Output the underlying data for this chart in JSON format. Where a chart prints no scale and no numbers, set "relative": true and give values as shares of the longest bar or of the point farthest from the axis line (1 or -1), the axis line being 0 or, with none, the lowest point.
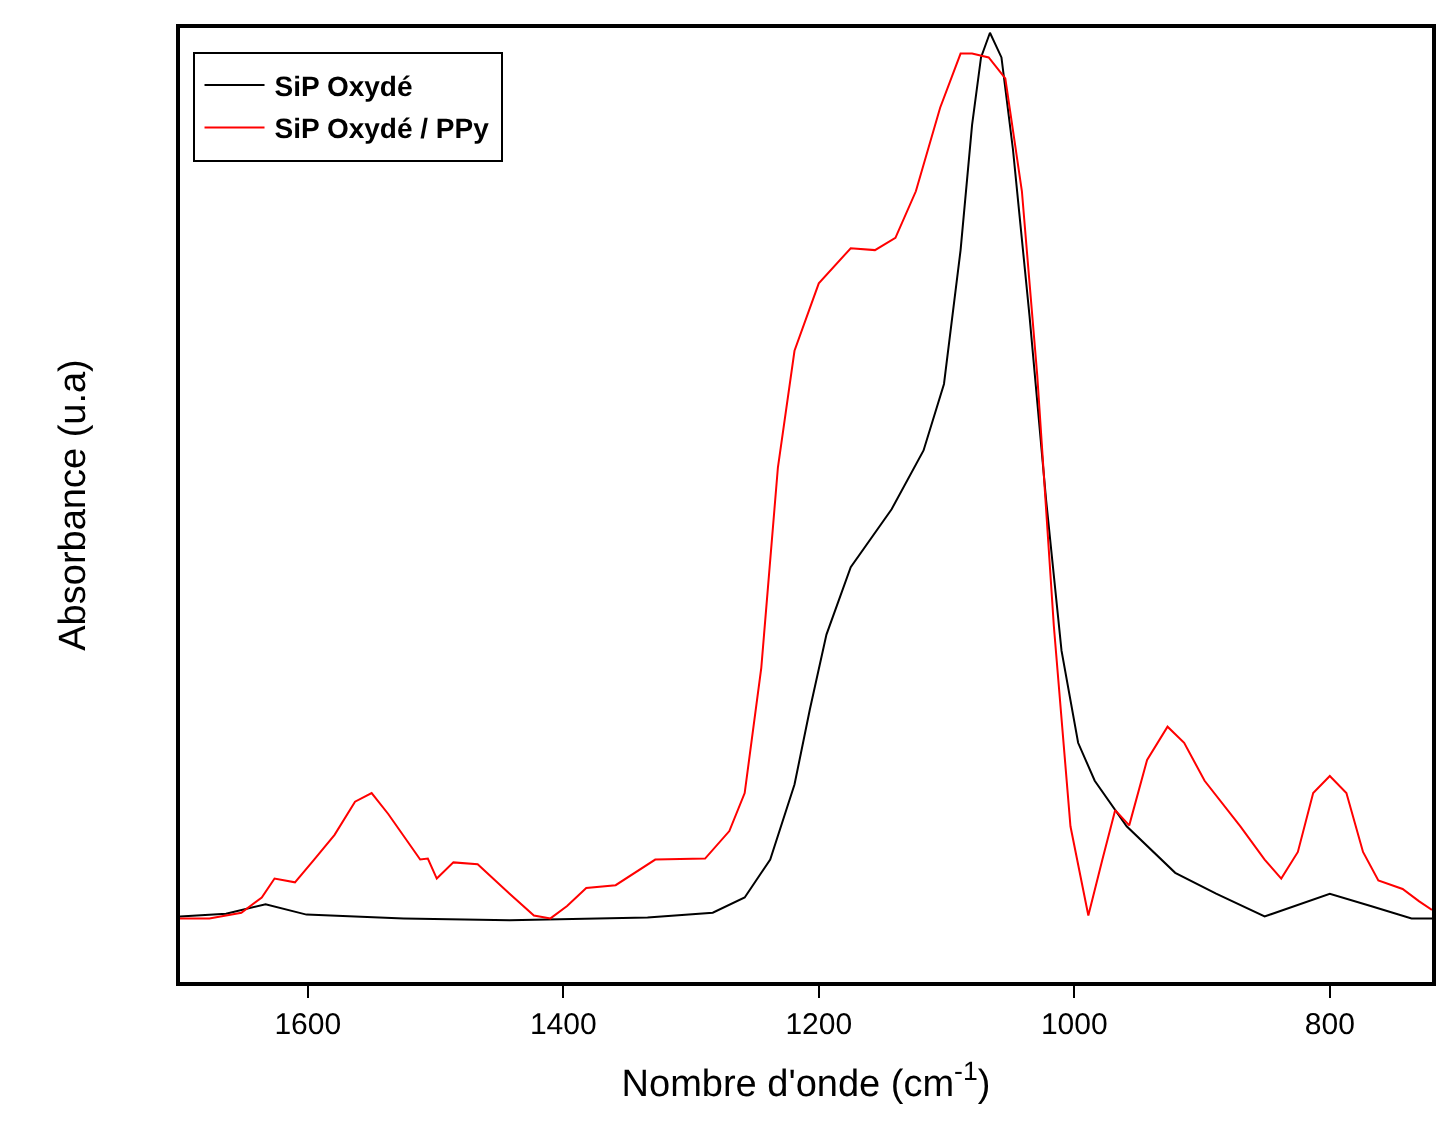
{
  "chart_data": {
    "type": "line",
    "relative": true,
    "xlabel": "Nombre d'onde (cm$^{-1}$)",
    "ylabel": "Absorbance (u.a)",
    "xlim": [
      1700,
      720
    ],
    "xticks": [
      1600,
      1400,
      1200,
      1000,
      800
    ],
    "legend": "top left",
    "marker": "none",
    "line_style": "solid",
    "series": [
      {
        "name": "SiP Oxydé",
        "color": "#000000",
        "x": [
          1700,
          1664,
          1633,
          1601,
          1525,
          1442,
          1334,
          1283,
          1258,
          1238,
          1219,
          1207,
          1194,
          1175,
          1143,
          1118,
          1102,
          1089,
          1080,
          1073,
          1066,
          1057,
          1048,
          1035,
          1022,
          1010,
          997,
          984,
          959,
          921,
          889,
          851,
          800,
          768,
          736,
          720
        ],
        "values": [
          0.069,
          0.072,
          0.082,
          0.071,
          0.067,
          0.065,
          0.068,
          0.073,
          0.089,
          0.129,
          0.208,
          0.287,
          0.366,
          0.437,
          0.498,
          0.56,
          0.63,
          0.771,
          0.903,
          0.974,
          1.0,
          0.974,
          0.877,
          0.701,
          0.507,
          0.349,
          0.252,
          0.212,
          0.164,
          0.115,
          0.093,
          0.069,
          0.093,
          0.08,
          0.067,
          0.067
        ]
      },
      {
        "name": "SiP Oxydé / PPy",
        "color": "#ff0000",
        "x": [
          1700,
          1677,
          1652,
          1636,
          1626,
          1610,
          1595,
          1579,
          1563,
          1550,
          1537,
          1512,
          1506,
          1499,
          1486,
          1467,
          1442,
          1423,
          1410,
          1397,
          1382,
          1359,
          1328,
          1289,
          1270,
          1258,
          1245,
          1232,
          1219,
          1200,
          1175,
          1156,
          1140,
          1124,
          1105,
          1089,
          1080,
          1067,
          1054,
          1041,
          1029,
          1016,
          1003,
          989,
          978,
          968,
          957,
          943,
          927,
          914,
          898,
          870,
          851,
          838,
          825,
          813,
          800,
          787,
          774,
          762,
          743,
          730,
          720
        ],
        "values": [
          0.067,
          0.067,
          0.073,
          0.089,
          0.109,
          0.105,
          0.129,
          0.155,
          0.19,
          0.199,
          0.177,
          0.129,
          0.13,
          0.109,
          0.126,
          0.124,
          0.093,
          0.07,
          0.067,
          0.08,
          0.099,
          0.102,
          0.129,
          0.13,
          0.159,
          0.199,
          0.331,
          0.542,
          0.665,
          0.736,
          0.773,
          0.771,
          0.784,
          0.833,
          0.921,
          0.978,
          0.978,
          0.974,
          0.952,
          0.833,
          0.639,
          0.375,
          0.164,
          0.07,
          0.129,
          0.181,
          0.165,
          0.234,
          0.269,
          0.252,
          0.212,
          0.164,
          0.129,
          0.109,
          0.137,
          0.199,
          0.217,
          0.199,
          0.137,
          0.107,
          0.098,
          0.085,
          0.076
        ]
      }
    ]
  }
}
